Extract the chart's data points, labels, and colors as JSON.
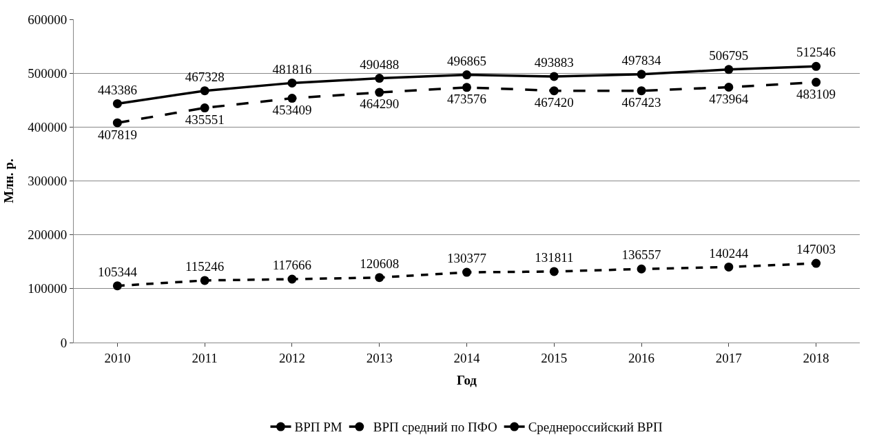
{
  "chart_data": {
    "type": "line",
    "xlabel": "Год",
    "ylabel": "Млн. р.",
    "categories": [
      "2010",
      "2011",
      "2012",
      "2013",
      "2014",
      "2015",
      "2016",
      "2017",
      "2018"
    ],
    "series": [
      {
        "name": "ВРП РМ",
        "color": "#000000",
        "line_style": "dotted",
        "values": [
          105344,
          115246,
          117666,
          120608,
          130377,
          131811,
          136557,
          140244,
          147003
        ]
      },
      {
        "name": "ВРП средний по ПФО",
        "color": "#000000",
        "line_style": "dashed",
        "values": [
          407819,
          435551,
          453409,
          464290,
          473576,
          467420,
          467423,
          473964,
          483109
        ]
      },
      {
        "name": "Среднероссийский ВРП",
        "color": "#000000",
        "line_style": "solid",
        "values": [
          443386,
          467328,
          481816,
          490488,
          496865,
          493883,
          497834,
          506795,
          512546
        ]
      }
    ],
    "ylim": [
      0,
      600000
    ],
    "yticks": [
      0,
      100000,
      200000,
      300000,
      400000,
      500000,
      600000
    ],
    "grid": "y",
    "legend": "bottom",
    "marker": "circle",
    "data_labels": true
  }
}
